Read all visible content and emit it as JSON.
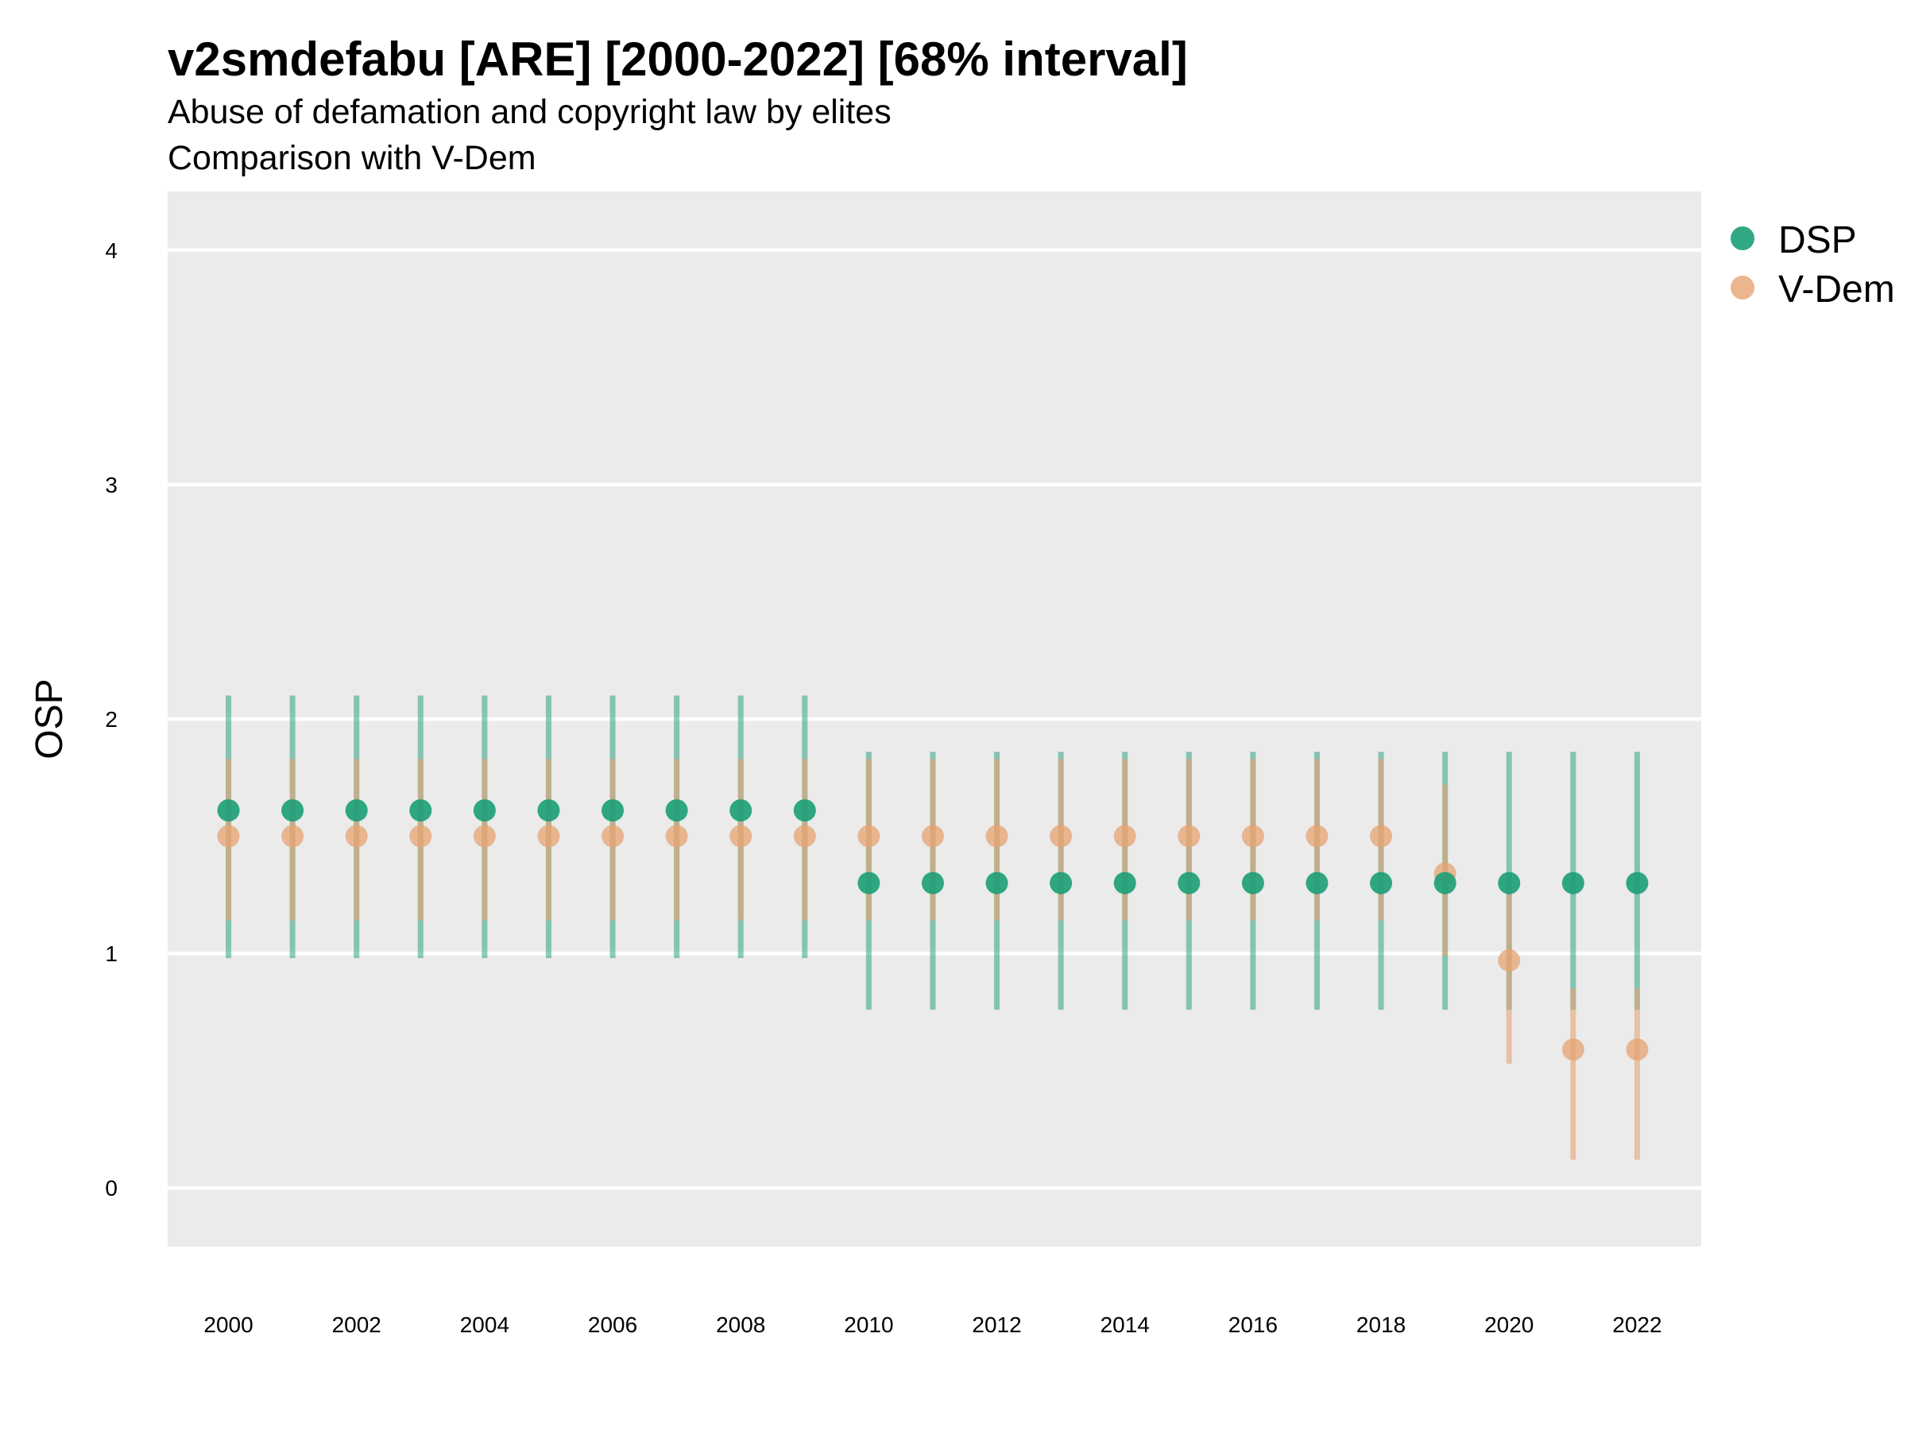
{
  "chart_data": {
    "type": "scatter",
    "title": "v2smdefabu [ARE] [2000-2022] [68% interval]",
    "subtitle": "Abuse of defamation and copyright law by elites",
    "subtitle2": "Comparison with V-Dem",
    "xlabel": "",
    "ylabel": "OSP",
    "xlim": [
      1999.05,
      2023.0
    ],
    "ylim": [
      -0.25,
      4.25
    ],
    "x_ticks": [
      "2000",
      "2002",
      "2004",
      "2006",
      "2008",
      "2010",
      "2012",
      "2014",
      "2016",
      "2018",
      "2020",
      "2022"
    ],
    "y_ticks": [
      "0",
      "1",
      "2",
      "3",
      "4"
    ],
    "grid": true,
    "legend_position": "right",
    "colors": {
      "DSP": "#1b9e77",
      "V-Dem": "#e6a371",
      "panel": "#ebebeb",
      "grid": "#ffffff"
    },
    "x": [
      2000,
      2001,
      2002,
      2003,
      2004,
      2005,
      2006,
      2007,
      2008,
      2009,
      2010,
      2011,
      2012,
      2013,
      2014,
      2015,
      2016,
      2017,
      2018,
      2019,
      2020,
      2021,
      2022
    ],
    "series": [
      {
        "name": "DSP",
        "values": [
          1.61,
          1.61,
          1.61,
          1.61,
          1.61,
          1.61,
          1.61,
          1.61,
          1.61,
          1.61,
          1.3,
          1.3,
          1.3,
          1.3,
          1.3,
          1.3,
          1.3,
          1.3,
          1.3,
          1.3,
          1.3,
          1.3,
          1.3
        ],
        "lower": [
          0.98,
          0.98,
          0.98,
          0.98,
          0.98,
          0.98,
          0.98,
          0.98,
          0.98,
          0.98,
          0.76,
          0.76,
          0.76,
          0.76,
          0.76,
          0.76,
          0.76,
          0.76,
          0.76,
          0.76,
          0.76,
          0.76,
          0.76
        ],
        "upper": [
          2.1,
          2.1,
          2.1,
          2.1,
          2.1,
          2.1,
          2.1,
          2.1,
          2.1,
          2.1,
          1.86,
          1.86,
          1.86,
          1.86,
          1.86,
          1.86,
          1.86,
          1.86,
          1.86,
          1.86,
          1.86,
          1.86,
          1.86
        ]
      },
      {
        "name": "V-Dem",
        "values": [
          1.5,
          1.5,
          1.5,
          1.5,
          1.5,
          1.5,
          1.5,
          1.5,
          1.5,
          1.5,
          1.5,
          1.5,
          1.5,
          1.5,
          1.5,
          1.5,
          1.5,
          1.5,
          1.5,
          1.34,
          0.97,
          0.59,
          0.59
        ],
        "lower": [
          1.14,
          1.14,
          1.14,
          1.14,
          1.14,
          1.14,
          1.14,
          1.14,
          1.14,
          1.14,
          1.14,
          1.14,
          1.14,
          1.14,
          1.14,
          1.14,
          1.14,
          1.14,
          1.14,
          0.99,
          0.53,
          0.12,
          0.12
        ],
        "upper": [
          1.83,
          1.83,
          1.83,
          1.83,
          1.83,
          1.83,
          1.83,
          1.83,
          1.83,
          1.83,
          1.83,
          1.83,
          1.83,
          1.83,
          1.83,
          1.83,
          1.83,
          1.83,
          1.83,
          1.72,
          1.3,
          0.85,
          0.85
        ]
      }
    ]
  }
}
